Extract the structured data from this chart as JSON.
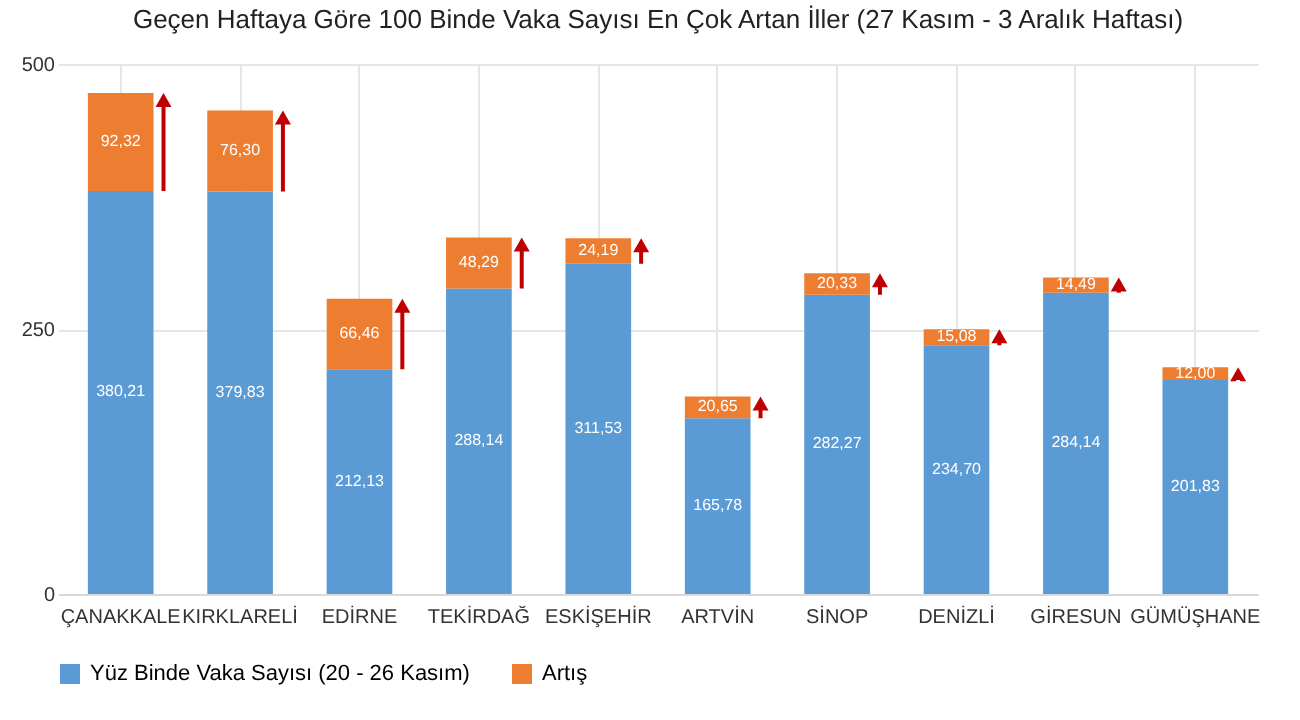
{
  "chart_data": {
    "type": "bar",
    "title": "Geçen Haftaya Göre 100 Binde Vaka Sayısı En Çok Artan İller (27 Kasım - 3 Aralık Haftası)",
    "categories": [
      "ÇANAKKALE",
      "KIRKLARELİ",
      "EDİRNE",
      "TEKİRDAĞ",
      "ESKİŞEHİR",
      "ARTVİN",
      "SİNOP",
      "DENİZLİ",
      "GİRESUN",
      "GÜMÜŞHANE"
    ],
    "stacked": true,
    "series": [
      {
        "name": "Yüz Binde Vaka Sayısı (20 - 26 Kasım)",
        "color": "#5b9bd5",
        "values": [
          380.21,
          379.83,
          212.13,
          288.14,
          311.53,
          165.78,
          282.27,
          234.7,
          284.14,
          201.83
        ],
        "value_labels": [
          "380,21",
          "379,83",
          "212,13",
          "288,14",
          "311,53",
          "165,78",
          "282,27",
          "234,70",
          "284,14",
          "201,83"
        ]
      },
      {
        "name": "Artış",
        "color": "#ed7d31",
        "values": [
          92.32,
          76.3,
          66.46,
          48.29,
          24.19,
          20.65,
          20.33,
          15.08,
          14.49,
          12.0
        ],
        "value_labels": [
          "92,32",
          "76,30",
          "66,46",
          "48,29",
          "24,19",
          "20,65",
          "20,33",
          "15,08",
          "14,49",
          "12,00"
        ]
      }
    ],
    "ylim": [
      0,
      500
    ],
    "yticks": [
      0,
      250,
      500
    ],
    "grid": true,
    "legend": "bottom"
  }
}
